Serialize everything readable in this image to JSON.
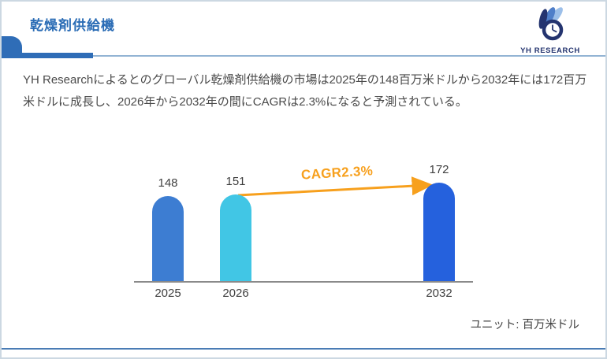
{
  "page": {
    "title": "乾燥剤供給機",
    "description": "YH Researchによるとのグローバル乾燥剤供給機の市場は2025年の148百万米ドルから2032年には172百万米ドルに成長し、2026年から2032年の間にCAGRは2.3%になると予測されている。",
    "unit_label": "ユニット: 百万米ドル"
  },
  "logo": {
    "text": "YH RESEARCH",
    "icon": "clock-with-leaves",
    "dark_color": "#24346f",
    "mid_color": "#4f7fc9",
    "light_color": "#9cbfe9"
  },
  "theme": {
    "title_color": "#2a6cb5",
    "header_accent": "#2f6db7",
    "header_thin_line": "#93b4d4",
    "bottom_line": "#4a7cb5",
    "text_color": "#4a4a4a",
    "axis_color": "#8a8a8a"
  },
  "chart_data": {
    "type": "bar",
    "title": "",
    "categories": [
      "2025",
      "2026",
      "2032"
    ],
    "values": [
      148,
      151,
      172
    ],
    "bar_colors": [
      "#3d7dd2",
      "#41c6e5",
      "#2561dd"
    ],
    "value_labels": [
      "148",
      "151",
      "172"
    ],
    "annotation": {
      "type": "arrow",
      "label": "CAGR2.3%",
      "from_category": "2026",
      "to_category": "2032",
      "color": "#f7a01d"
    },
    "unit": "百万米ドル",
    "xlabel": "",
    "ylabel": "",
    "ylim": [
      0,
      190
    ],
    "grid": false,
    "legend": false,
    "value_labels_shown": true
  }
}
